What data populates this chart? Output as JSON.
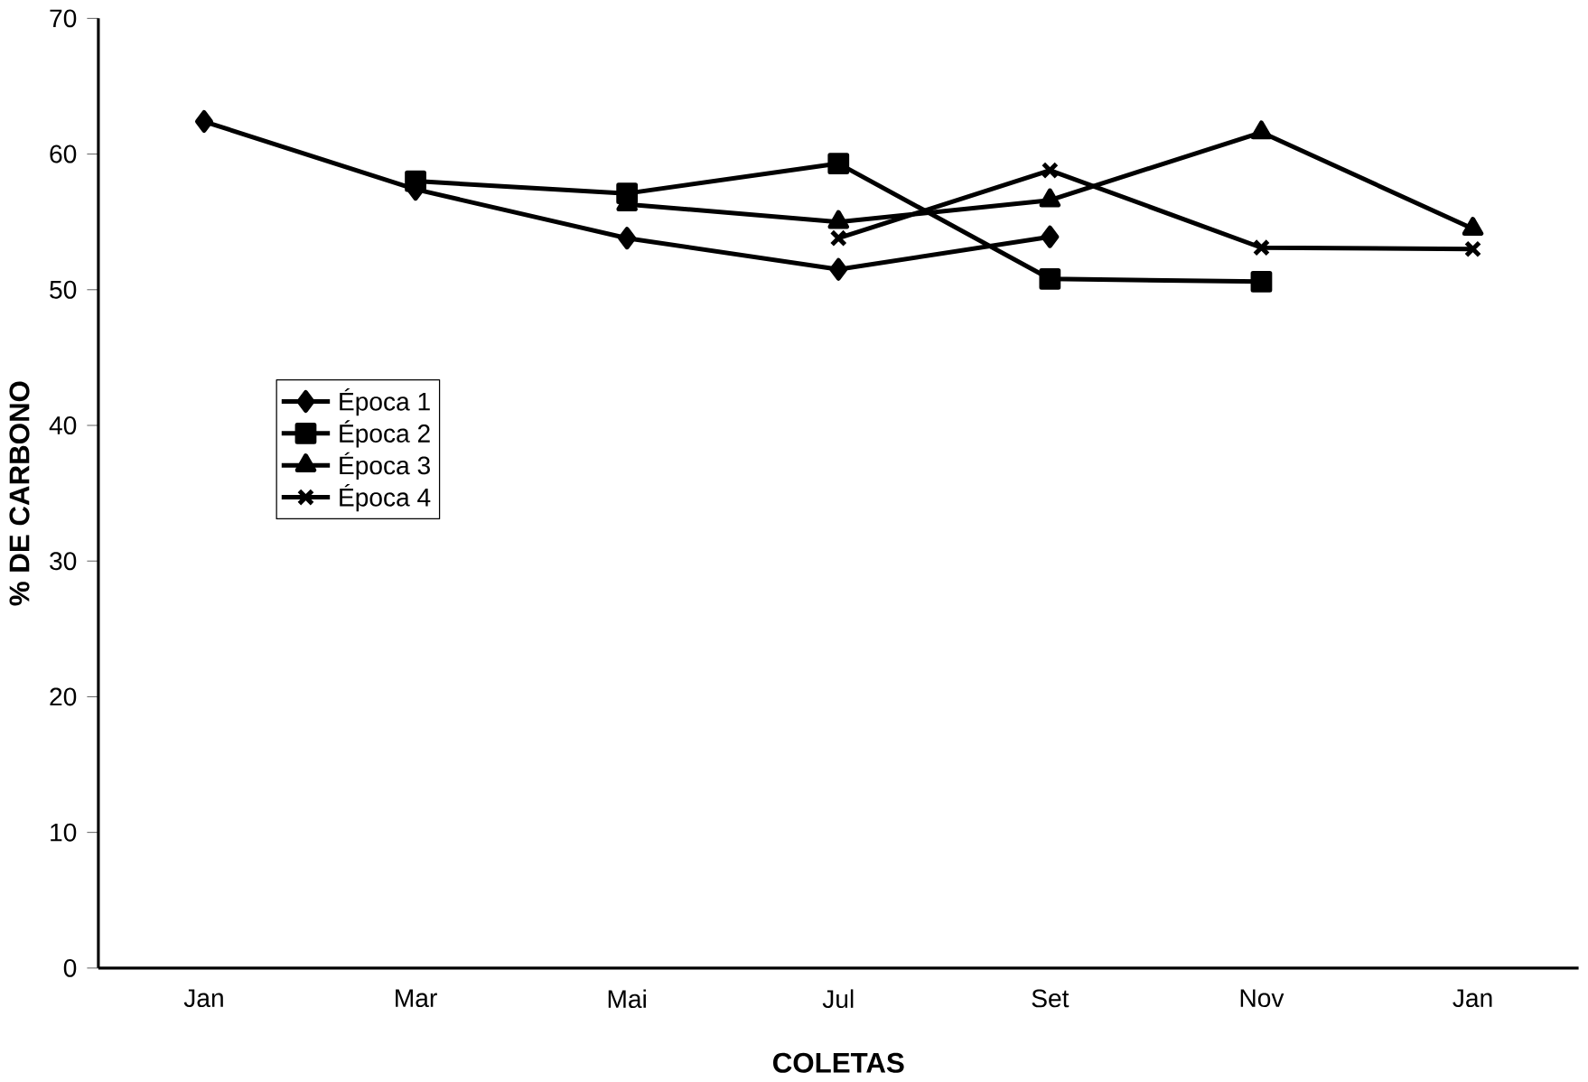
{
  "chart_data": {
    "type": "line",
    "xlabel": "COLETAS",
    "ylabel": "% DE CARBONO",
    "categories": [
      "Jan",
      "Mar",
      "Mai",
      "Jul",
      "Set",
      "Nov",
      "Jan"
    ],
    "series": [
      {
        "name": "Época 1",
        "color": "#000000",
        "marker": "diamond",
        "values": [
          62.4,
          57.4,
          53.8,
          51.5,
          53.9,
          null,
          null
        ]
      },
      {
        "name": "Época 2",
        "color": "#000000",
        "marker": "square",
        "values": [
          null,
          58.0,
          57.1,
          59.3,
          50.8,
          50.6,
          null
        ]
      },
      {
        "name": "Época 3",
        "color": "#000000",
        "marker": "triangle",
        "values": [
          null,
          null,
          56.3,
          55.0,
          56.6,
          61.6,
          54.5
        ]
      },
      {
        "name": "Época 4",
        "color": "#000000",
        "marker": "cross",
        "values": [
          null,
          null,
          null,
          53.8,
          58.8,
          53.1,
          53.0
        ]
      }
    ],
    "ylim": [
      0,
      70
    ],
    "yticks": [
      0,
      10,
      20,
      30,
      40,
      50,
      60,
      70
    ],
    "legend": "left",
    "grid": false,
    "line_style": "solid"
  }
}
